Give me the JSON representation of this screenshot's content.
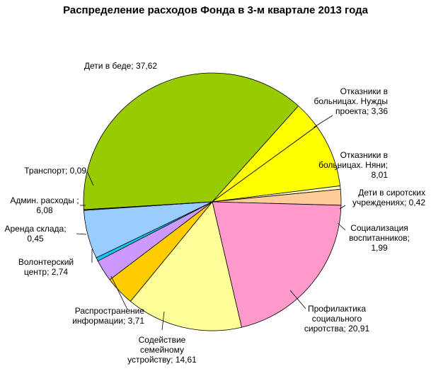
{
  "chart_data": {
    "type": "pie",
    "title": "Распределение расходов Фонда в 3-м квартале 2013 года",
    "slices": [
      {
        "label": "Дети в беде",
        "value": 37.62,
        "value_text": "37,62",
        "color": "#99cc00"
      },
      {
        "label": "Отказники в больницах. Нужды проекта",
        "value": 3.36,
        "value_text": "3,36",
        "color": "#ffff00"
      },
      {
        "label": "Отказники в больницах. Няни",
        "value": 8.01,
        "value_text": "8,01",
        "color": "#ffff00"
      },
      {
        "label": "Дети в сиротских учреждениях",
        "value": 0.42,
        "value_text": "0,42",
        "color": "#ffffcc"
      },
      {
        "label": "Социализация воспитанников",
        "value": 1.99,
        "value_text": "1,99",
        "color": "#ffcc99"
      },
      {
        "label": "Профилактика социального сиротства",
        "value": 20.91,
        "value_text": "20,91",
        "color": "#ff99cc"
      },
      {
        "label": "Содействие семейному устройству",
        "value": 14.61,
        "value_text": "14,61",
        "color": "#ffff99"
      },
      {
        "label": "Распространение информации",
        "value": 3.71,
        "value_text": "3,71",
        "color": "#ffcc00"
      },
      {
        "label": "Волонтерский центр",
        "value": 2.74,
        "value_text": "2,74",
        "color": "#cc99ff"
      },
      {
        "label": "Аренда склада",
        "value": 0.45,
        "value_text": "0,45",
        "color": "#00ccff"
      },
      {
        "label": "Админ. расходы",
        "value": 6.08,
        "value_text": "6,08",
        "color": "#99ccff"
      },
      {
        "label": "Транспорт",
        "value": 0.09,
        "value_text": "0,09",
        "color": "#993366"
      }
    ],
    "label_lines": [
      [
        "Дети в беде; 37,62"
      ],
      [
        "Отказники в",
        "больницах. Нужды",
        "проекта; 3,36"
      ],
      [
        "Отказники в",
        "больницах. Няни;",
        "8,01"
      ],
      [
        "Дети в сиротских",
        "учреждениях; 0,42"
      ],
      [
        "Социализация",
        "воспитанников;",
        "1,99"
      ],
      [
        "Профилактика",
        "социального",
        "сиротства; 20,91"
      ],
      [
        "Содействие",
        "семейному",
        "устройству; 14,61"
      ],
      [
        "Распространение",
        "информации; 3,71"
      ],
      [
        "Волонтерский",
        "центр; 2,74"
      ],
      [
        "Аренда склада;",
        "0,45"
      ],
      [
        "Админ. расходы ;",
        "6,08"
      ],
      [
        "Транспорт; 0,09"
      ]
    ],
    "legend": "none",
    "label_style": "outside with leader lines",
    "slice_outline_color": "#000000"
  }
}
